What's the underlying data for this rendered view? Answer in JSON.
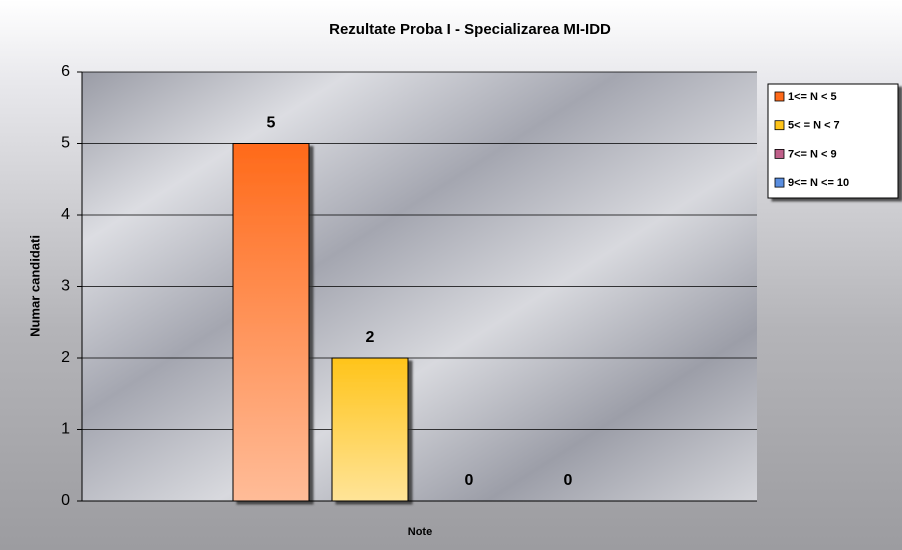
{
  "chart_data": {
    "type": "bar",
    "title": "Rezultate Proba I - Specializarea MI-IDD",
    "x_label": "Note",
    "y_label": "Numar candidati",
    "categories": [
      null
    ],
    "series": [
      {
        "name": "1<= N < 5",
        "color": "#ff6a1a",
        "values": [
          5
        ]
      },
      {
        "name": "5< = N < 7",
        "color": "#ffc41a",
        "values": [
          2
        ]
      },
      {
        "name": "7<= N < 9",
        "color": "#c0608a",
        "values": [
          0
        ]
      },
      {
        "name": "9<= N <= 10",
        "color": "#5a8ee0",
        "values": [
          0
        ]
      }
    ],
    "ylim": [
      0,
      6
    ],
    "yticks": [
      0,
      1,
      2,
      3,
      4,
      5,
      6
    ],
    "grid": true,
    "legend": "right"
  }
}
